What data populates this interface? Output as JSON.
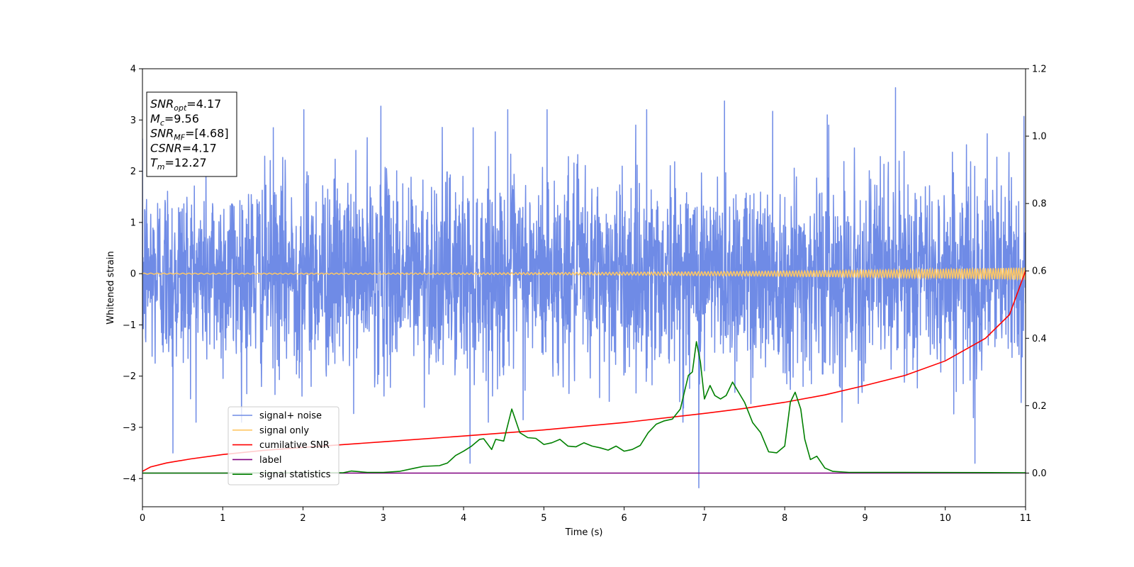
{
  "chart_data": {
    "type": "line",
    "xlabel": "Time (s)",
    "ylabel": "Whitened strain",
    "xlim": [
      0,
      11
    ],
    "ylim_left": [
      -4.55,
      4.0
    ],
    "ylim_right": [
      -0.1,
      1.2
    ],
    "x_ticks": [
      "0",
      "1",
      "2",
      "3",
      "4",
      "5",
      "6",
      "7",
      "8",
      "9",
      "10",
      "11"
    ],
    "y_ticks_left": [
      "−4",
      "−3",
      "−2",
      "−1",
      "0",
      "1",
      "2",
      "3",
      "4"
    ],
    "y_ticks_right": [
      "0.0",
      "0.2",
      "0.4",
      "0.6",
      "0.8",
      "1.0",
      "1.2"
    ],
    "legend_position": "lower-left",
    "series": [
      {
        "name": "signal+ noise",
        "axis": "left",
        "color": "#6f8be6",
        "description": "whitened noisy strain, roughly Gaussian with amplitude up to ~3.6",
        "notable_spikes": [
          {
            "x": 0.38,
            "y": -3.5
          },
          {
            "x": 1.63,
            "y": 2.85
          },
          {
            "x": 2.01,
            "y": 3.2
          },
          {
            "x": 2.97,
            "y": 3.27
          },
          {
            "x": 4.08,
            "y": -3.7
          },
          {
            "x": 4.55,
            "y": 3.2
          },
          {
            "x": 5.04,
            "y": 3.2
          },
          {
            "x": 6.28,
            "y": 3.2
          },
          {
            "x": 6.93,
            "y": -4.18
          },
          {
            "x": 7.25,
            "y": 3.37
          },
          {
            "x": 7.85,
            "y": 3.17
          },
          {
            "x": 8.53,
            "y": 3.1
          },
          {
            "x": 9.38,
            "y": 3.63
          },
          {
            "x": 10.37,
            "y": -3.7
          },
          {
            "x": 10.98,
            "y": 3.07
          }
        ]
      },
      {
        "name": "signal only",
        "axis": "left",
        "color": "#ffc864",
        "description": "chirp signal oscillating around 0, amplitude growing from ~0 to ~0.12"
      },
      {
        "name": "cumilative SNR",
        "axis": "right",
        "color": "#ff0000",
        "x": [
          0,
          0.1,
          0.3,
          0.6,
          1,
          1.5,
          2,
          3,
          4,
          5,
          6,
          7,
          7.5,
          8,
          8.5,
          9,
          9.5,
          10,
          10.5,
          10.8,
          11
        ],
        "values": [
          0.005,
          0.018,
          0.03,
          0.042,
          0.055,
          0.067,
          0.076,
          0.093,
          0.11,
          0.128,
          0.15,
          0.177,
          0.192,
          0.21,
          0.232,
          0.26,
          0.29,
          0.333,
          0.4,
          0.47,
          0.6
        ]
      },
      {
        "name": "label",
        "axis": "right",
        "color": "#800080",
        "x": [
          0,
          11
        ],
        "values": [
          0.0,
          0.0
        ]
      },
      {
        "name": "signal statistics",
        "axis": "right",
        "color": "#008000",
        "x": [
          0,
          1,
          2,
          2.5,
          2.6,
          2.8,
          3.0,
          3.2,
          3.4,
          3.5,
          3.7,
          3.8,
          3.9,
          4.0,
          4.1,
          4.2,
          4.25,
          4.35,
          4.4,
          4.5,
          4.6,
          4.7,
          4.8,
          4.9,
          5.0,
          5.1,
          5.2,
          5.3,
          5.4,
          5.5,
          5.6,
          5.7,
          5.8,
          5.9,
          6.0,
          6.1,
          6.2,
          6.3,
          6.4,
          6.5,
          6.6,
          6.7,
          6.8,
          6.85,
          6.9,
          6.95,
          7.0,
          7.07,
          7.13,
          7.2,
          7.27,
          7.35,
          7.4,
          7.5,
          7.6,
          7.7,
          7.8,
          7.9,
          8.0,
          8.07,
          8.13,
          8.2,
          8.25,
          8.32,
          8.4,
          8.5,
          8.6,
          8.8,
          9.5,
          11
        ],
        "values": [
          0.0,
          0.0,
          0.001,
          0.001,
          0.006,
          0.002,
          0.002,
          0.005,
          0.015,
          0.02,
          0.022,
          0.03,
          0.052,
          0.065,
          0.08,
          0.1,
          0.102,
          0.07,
          0.1,
          0.095,
          0.19,
          0.12,
          0.105,
          0.103,
          0.085,
          0.09,
          0.1,
          0.08,
          0.078,
          0.09,
          0.08,
          0.075,
          0.068,
          0.08,
          0.065,
          0.07,
          0.082,
          0.12,
          0.145,
          0.155,
          0.16,
          0.19,
          0.29,
          0.3,
          0.39,
          0.33,
          0.22,
          0.26,
          0.23,
          0.22,
          0.23,
          0.27,
          0.25,
          0.21,
          0.15,
          0.12,
          0.063,
          0.06,
          0.08,
          0.21,
          0.24,
          0.19,
          0.1,
          0.04,
          0.05,
          0.015,
          0.005,
          0.002,
          0.002,
          0.001
        ]
      }
    ],
    "annotation_box": {
      "lines": [
        {
          "math": "SNR",
          "sub": "opt",
          "rest": "=4.17"
        },
        {
          "math": "M",
          "sub": "c",
          "rest": "=9.56"
        },
        {
          "math": "SNR",
          "sub": "MF",
          "rest": "=[4.68]"
        },
        {
          "math": "CSNR",
          "sub": "",
          "rest": "=4.17"
        },
        {
          "math": "T",
          "sub": "m",
          "rest": "=12.27"
        }
      ]
    }
  }
}
